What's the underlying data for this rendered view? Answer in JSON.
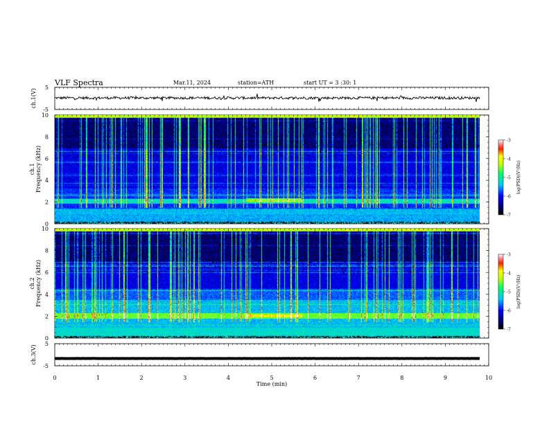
{
  "header": {
    "title": "VLF  Spectra",
    "date": "Mar.11, 2024",
    "station": "station=ATH",
    "start": "start  UT  =   3  :30: 1"
  },
  "chart_data": [
    {
      "type": "line",
      "name": "ch1-waveform",
      "ylabel": "ch.1(V)",
      "ylim": [
        -5,
        5
      ],
      "yticks": [
        "5",
        "-5"
      ],
      "xlim": [
        0,
        10
      ],
      "trace_level": 0.2,
      "trace_noise": 0.6
    },
    {
      "type": "heatmap",
      "name": "ch1-spectrogram",
      "ylabel": "ch.1\nFrequency (kHz)",
      "ylim": [
        0,
        10
      ],
      "yticks": [
        "0",
        "2",
        "4",
        "6",
        "8",
        "10"
      ],
      "xlim": [
        0,
        9.8
      ],
      "colorbar": {
        "label": "log(PSD)(V²/Hz)",
        "ticks": [
          "-3",
          "-4",
          "-5",
          "-6",
          "-7"
        ],
        "range": [
          -7,
          -3
        ]
      }
    },
    {
      "type": "heatmap",
      "name": "ch2-spectrogram",
      "ylabel": "ch.2\nFrequency (kHz)",
      "ylim": [
        0,
        10
      ],
      "yticks": [
        "0",
        "2",
        "4",
        "6",
        "8",
        "10"
      ],
      "xlim": [
        0,
        9.8
      ],
      "colorbar": {
        "label": "log(PSD)(V²/Hz)",
        "ticks": [
          "-3",
          "-4",
          "-5",
          "-6",
          "-7"
        ],
        "range": [
          -7,
          -3
        ]
      }
    },
    {
      "type": "line",
      "name": "ch3-waveform",
      "ylabel": "ch.3(V)",
      "ylim": [
        -5,
        5
      ],
      "yticks": [
        "5",
        "-5"
      ],
      "xlim": [
        0,
        10
      ],
      "trace_level": -1.7,
      "trace_noise": 0.05
    }
  ],
  "xaxis": {
    "label": "Time  (min)",
    "ticks": [
      "0",
      "1",
      "2",
      "3",
      "4",
      "5",
      "6",
      "7",
      "8",
      "9",
      "10"
    ],
    "range": [
      0,
      10
    ]
  },
  "colors": {
    "black": "#000000",
    "axis": "#000000",
    "background": "#ffffff"
  }
}
